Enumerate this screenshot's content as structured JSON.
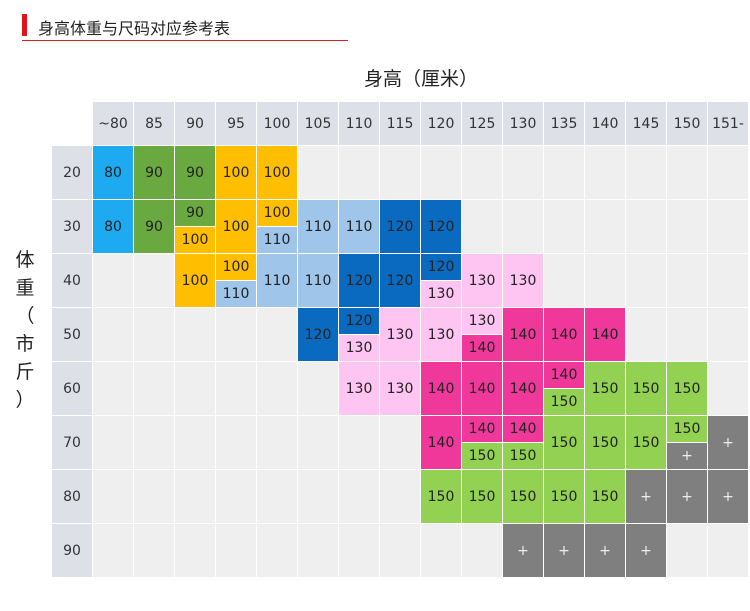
{
  "title": "身高体重与尺码对应参考表",
  "axis_x": "身高（厘米）",
  "axis_y": [
    "体",
    "重",
    "（",
    "市",
    "斤",
    "）"
  ],
  "heights": [
    "~80",
    "85",
    "90",
    "95",
    "100",
    "105",
    "110",
    "115",
    "120",
    "125",
    "130",
    "135",
    "140",
    "145",
    "150",
    "151-"
  ],
  "weights": [
    "20",
    "30",
    "40",
    "50",
    "60",
    "70",
    "80",
    "90"
  ],
  "colors": {
    "80": "#1eaaf0",
    "90": "#6aa93f",
    "100": "#ffbf00",
    "110": "#9fc5ea",
    "120": "#0a6ac0",
    "130": "#fec5f2",
    "140": "#f0389a",
    "150": "#93d152",
    "+": "#7f7f7f",
    "empty": "#efefef"
  },
  "rows": [
    [
      [
        "80"
      ],
      [
        "90"
      ],
      [
        "90"
      ],
      [
        "100"
      ],
      [
        "100"
      ],
      [],
      [],
      [],
      [],
      [],
      [],
      [],
      [],
      [],
      [],
      []
    ],
    [
      [
        "80"
      ],
      [
        "90"
      ],
      [
        "90",
        "100"
      ],
      [
        "100"
      ],
      [
        "100",
        "110"
      ],
      [
        "110"
      ],
      [
        "110"
      ],
      [
        "120"
      ],
      [
        "120"
      ],
      [],
      [],
      [],
      [],
      [],
      [],
      []
    ],
    [
      [],
      [],
      [
        "100"
      ],
      [
        "100",
        "110"
      ],
      [
        "110"
      ],
      [
        "110"
      ],
      [
        "120"
      ],
      [
        "120"
      ],
      [
        "120",
        "130"
      ],
      [
        "130"
      ],
      [
        "130"
      ],
      [],
      [],
      [],
      [],
      []
    ],
    [
      [],
      [],
      [],
      [],
      [],
      [
        "120"
      ],
      [
        "120",
        "130"
      ],
      [
        "130"
      ],
      [
        "130"
      ],
      [
        "130",
        "140"
      ],
      [
        "140"
      ],
      [
        "140"
      ],
      [
        "140"
      ],
      [],
      [],
      []
    ],
    [
      [],
      [],
      [],
      [],
      [],
      [],
      [
        "130"
      ],
      [
        "130"
      ],
      [
        "140"
      ],
      [
        "140"
      ],
      [
        "140"
      ],
      [
        "140",
        "150"
      ],
      [
        "150"
      ],
      [
        "150"
      ],
      [
        "150"
      ],
      []
    ],
    [
      [],
      [],
      [],
      [],
      [],
      [],
      [],
      [],
      [
        "140"
      ],
      [
        "140",
        "150"
      ],
      [
        "140",
        "150"
      ],
      [
        "150"
      ],
      [
        "150"
      ],
      [
        "150"
      ],
      [
        "150",
        "+"
      ],
      [
        "+"
      ]
    ],
    [
      [],
      [],
      [],
      [],
      [],
      [],
      [],
      [],
      [
        "150"
      ],
      [
        "150"
      ],
      [
        "150"
      ],
      [
        "150"
      ],
      [
        "150"
      ],
      [
        "+"
      ],
      [
        "+"
      ],
      [
        "+"
      ]
    ],
    [
      [],
      [],
      [],
      [],
      [],
      [],
      [],
      [],
      [],
      [],
      [
        "+"
      ],
      [
        "+"
      ],
      [
        "+"
      ],
      [
        "+"
      ],
      [],
      []
    ]
  ]
}
